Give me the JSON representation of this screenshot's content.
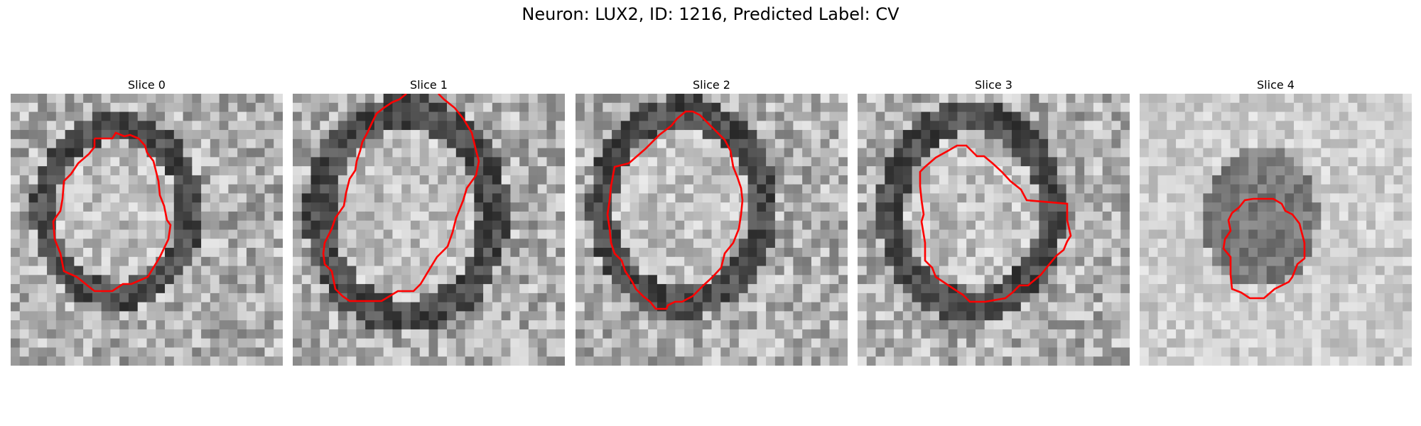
{
  "figure": {
    "title": "Neuron: LUX2, ID: 1216, Predicted Label: CV"
  },
  "slices": [
    {
      "label": "Slice 0"
    },
    {
      "label": "Slice 1"
    },
    {
      "label": "Slice 2"
    },
    {
      "label": "Slice 3"
    },
    {
      "label": "Slice 4"
    }
  ],
  "colors": {
    "contour": "#ff0000"
  }
}
